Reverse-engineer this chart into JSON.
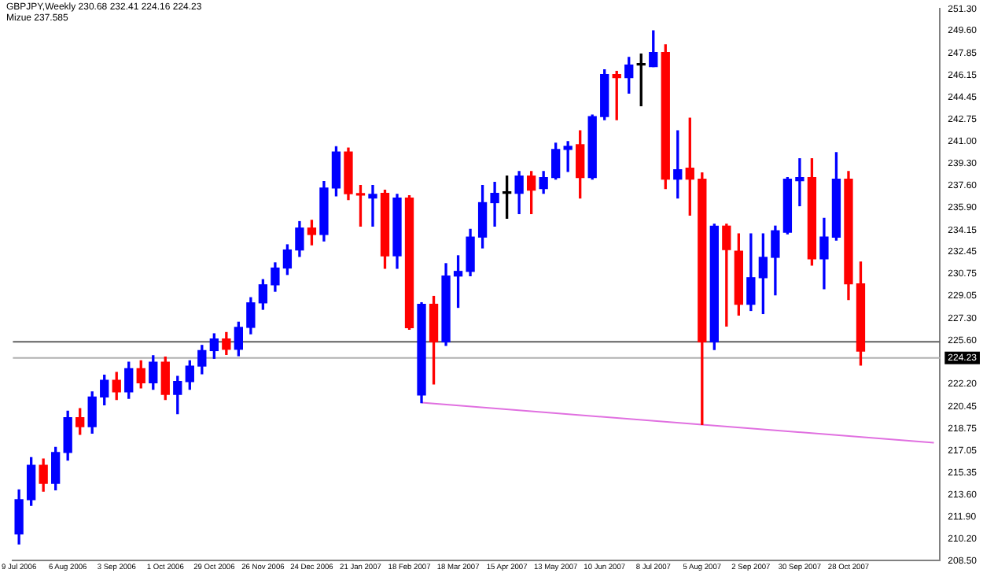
{
  "chart_data": {
    "type": "candlestick",
    "title": "GBPJPY,Weekly  230.68 232.41 224.16 224.23",
    "subtitle": "Mizue 237.585",
    "categories": [
      "9 Jul 2006",
      null,
      null,
      null,
      "6 Aug 2006",
      null,
      null,
      null,
      "3 Sep 2006",
      null,
      null,
      null,
      "1 Oct 2006",
      null,
      null,
      null,
      "29 Oct 2006",
      null,
      null,
      null,
      "26 Nov 2006",
      null,
      null,
      null,
      "24 Dec 2006",
      null,
      null,
      null,
      "21 Jan 2007",
      null,
      null,
      null,
      "18 Feb 2007",
      null,
      null,
      null,
      "18 Mar 2007",
      null,
      null,
      null,
      "15 Apr 2007",
      null,
      null,
      null,
      "13 May 2007",
      null,
      null,
      null,
      "10 Jun 2007",
      null,
      null,
      null,
      "8 Jul 2007",
      null,
      null,
      null,
      "5 Aug 2007",
      null,
      null,
      null,
      "2 Sep 2007",
      null,
      null,
      null,
      "30 Sep 2007",
      null,
      null,
      null,
      "28 Oct 2007",
      null,
      null,
      null,
      null,
      null,
      null,
      null
    ],
    "ohlc": [
      [
        210.58,
        214.0,
        209.8,
        213.24
      ],
      [
        213.24,
        216.5,
        212.8,
        215.9
      ],
      [
        215.9,
        216.4,
        213.9,
        214.5
      ],
      [
        214.5,
        217.3,
        214.0,
        216.9
      ],
      [
        216.9,
        220.1,
        216.3,
        219.6
      ],
      [
        219.6,
        220.3,
        218.3,
        218.9
      ],
      [
        218.9,
        221.6,
        218.4,
        221.2
      ],
      [
        221.2,
        222.9,
        220.6,
        222.5
      ],
      [
        222.5,
        223.1,
        221.0,
        221.6
      ],
      [
        221.6,
        223.9,
        221.1,
        223.4
      ],
      [
        223.4,
        224.0,
        221.9,
        222.3
      ],
      [
        222.3,
        224.4,
        221.8,
        223.9
      ],
      [
        223.9,
        224.3,
        221.0,
        221.4
      ],
      [
        221.4,
        222.8,
        219.9,
        222.4
      ],
      [
        222.4,
        224.0,
        221.8,
        223.6
      ],
      [
        223.6,
        225.2,
        223.0,
        224.8
      ],
      [
        224.8,
        226.1,
        224.2,
        225.7
      ],
      [
        225.7,
        226.2,
        224.5,
        224.9
      ],
      [
        224.9,
        227.0,
        224.4,
        226.6
      ],
      [
        226.6,
        228.9,
        226.1,
        228.5
      ],
      [
        228.5,
        230.3,
        228.0,
        229.9
      ],
      [
        229.9,
        231.6,
        229.4,
        231.2
      ],
      [
        231.2,
        233.0,
        230.7,
        232.6
      ],
      [
        232.6,
        234.8,
        232.1,
        234.3
      ],
      [
        234.3,
        234.9,
        233.0,
        233.8
      ],
      [
        233.8,
        237.9,
        233.3,
        237.4
      ],
      [
        237.4,
        240.6,
        236.8,
        240.2
      ],
      [
        240.2,
        240.5,
        236.5,
        236.97
      ],
      [
        236.97,
        237.6,
        234.45,
        236.85
      ],
      [
        236.63,
        237.6,
        234.45,
        236.91
      ],
      [
        236.99,
        237.24,
        231.18,
        232.15
      ],
      [
        232.15,
        236.91,
        231.18,
        236.63
      ],
      [
        236.63,
        236.8,
        226.45,
        226.57
      ],
      [
        221.36,
        228.51,
        220.76,
        228.39
      ],
      [
        228.39,
        229.0,
        222.21,
        225.48
      ],
      [
        225.48,
        231.54,
        225.2,
        230.58
      ],
      [
        230.58,
        232.15,
        228.15,
        230.94
      ],
      [
        230.94,
        234.2,
        230.6,
        233.6
      ],
      [
        233.6,
        237.6,
        232.76,
        236.27
      ],
      [
        236.27,
        237.85,
        234.45,
        236.99
      ],
      [
        236.99,
        238.33,
        235.06,
        236.99
      ],
      [
        236.99,
        238.69,
        235.42,
        238.33
      ],
      [
        238.33,
        238.69,
        235.42,
        237.24
      ],
      [
        237.36,
        238.69,
        236.99,
        238.21
      ],
      [
        238.21,
        240.88,
        238.09,
        240.39
      ],
      [
        240.39,
        241.0,
        238.69,
        240.63
      ],
      [
        240.76,
        241.85,
        236.63,
        238.21
      ],
      [
        238.21,
        243.06,
        238.09,
        242.94
      ],
      [
        242.94,
        246.57,
        242.7,
        246.21
      ],
      [
        246.21,
        246.45,
        242.7,
        245.97
      ],
      [
        245.97,
        247.54,
        244.76,
        246.94
      ],
      [
        246.94,
        247.79,
        243.79,
        246.94
      ],
      [
        246.82,
        249.6,
        246.82,
        247.91
      ],
      [
        247.91,
        248.51,
        237.36,
        238.09
      ],
      [
        238.09,
        241.85,
        236.63,
        238.82
      ],
      [
        238.94,
        242.82,
        235.3,
        238.09
      ],
      [
        238.09,
        238.57,
        219.06,
        225.48
      ],
      [
        225.48,
        234.6,
        224.88,
        234.45
      ],
      [
        234.45,
        234.6,
        226.7,
        232.63
      ],
      [
        232.51,
        233.85,
        227.55,
        228.39
      ],
      [
        228.39,
        233.85,
        227.91,
        230.45
      ],
      [
        230.45,
        233.85,
        227.67,
        232.03
      ],
      [
        232.03,
        234.45,
        229.12,
        234.09
      ],
      [
        233.97,
        238.21,
        233.85,
        238.09
      ],
      [
        237.97,
        239.67,
        236.03,
        238.21
      ],
      [
        238.21,
        239.67,
        231.42,
        231.91
      ],
      [
        231.91,
        235.06,
        229.6,
        233.6
      ],
      [
        233.6,
        240.15,
        233.36,
        238.09
      ],
      [
        238.09,
        238.69,
        228.76,
        229.97
      ],
      [
        229.97,
        231.67,
        223.67,
        224.76
      ],
      null,
      null,
      null,
      null,
      null,
      null
    ],
    "colors": [
      "#0000ff",
      "#0000ff",
      "#ff0000",
      "#0000ff",
      "#0000ff",
      "#ff0000",
      "#0000ff",
      "#0000ff",
      "#ff0000",
      "#0000ff",
      "#ff0000",
      "#0000ff",
      "#ff0000",
      "#0000ff",
      "#0000ff",
      "#0000ff",
      "#0000ff",
      "#ff0000",
      "#0000ff",
      "#0000ff",
      "#0000ff",
      "#0000ff",
      "#0000ff",
      "#0000ff",
      "#ff0000",
      "#0000ff",
      "#0000ff",
      "#ff0000",
      "#ff0000",
      "#0000ff",
      "#ff0000",
      "#0000ff",
      "#ff0000",
      "#0000ff",
      "#ff0000",
      "#0000ff",
      "#0000ff",
      "#0000ff",
      "#0000ff",
      "#0000ff",
      "#000000",
      "#0000ff",
      "#ff0000",
      "#0000ff",
      "#0000ff",
      "#0000ff",
      "#ff0000",
      "#0000ff",
      "#0000ff",
      "#ff0000",
      "#0000ff",
      "#000000",
      "#0000ff",
      "#ff0000",
      "#0000ff",
      "#ff0000",
      "#ff0000",
      "#0000ff",
      "#ff0000",
      "#ff0000",
      "#0000ff",
      "#0000ff",
      "#0000ff",
      "#0000ff",
      "#0000ff",
      "#ff0000",
      "#0000ff",
      "#0000ff",
      "#ff0000",
      "#ff0000",
      null,
      null,
      null,
      null,
      null,
      null
    ],
    "series": [
      {
        "type": "line",
        "color": "#e070e0",
        "values": [
          null,
          null,
          null,
          null,
          null,
          null,
          null,
          null,
          null,
          null,
          null,
          null,
          null,
          null,
          null,
          null,
          null,
          null,
          null,
          null,
          null,
          null,
          null,
          null,
          null,
          null,
          null,
          null,
          null,
          null,
          null,
          null,
          null,
          220.76,
          null,
          null,
          null,
          null,
          null,
          null,
          null,
          null,
          null,
          null,
          null,
          null,
          null,
          null,
          null,
          null,
          null,
          null,
          null,
          null,
          null,
          null,
          219.06,
          null,
          null,
          null,
          null,
          null,
          null,
          null,
          null,
          null,
          null,
          null,
          null,
          null,
          null,
          null,
          null,
          null,
          null,
          217.66
        ]
      }
    ],
    "ref_lines": [
      {
        "axis": "y",
        "value": 225.48,
        "color": "#606060"
      },
      {
        "axis": "y",
        "value": 224.23,
        "label": "224.23",
        "color": "#b0b0b0"
      }
    ],
    "ylim": [
      208.5,
      251.3
    ],
    "yticks": [
      {
        "value": 208.5,
        "label": "208.50"
      },
      {
        "value": 210.2,
        "label": "210.20"
      },
      {
        "value": 211.9,
        "label": "211.90"
      },
      {
        "value": 213.6,
        "label": "213.60"
      },
      {
        "value": 215.35,
        "label": "215.35"
      },
      {
        "value": 217.05,
        "label": "217.05"
      },
      {
        "value": 218.75,
        "label": "218.75"
      },
      {
        "value": 220.45,
        "label": "220.45"
      },
      {
        "value": 222.2,
        "label": "222.20"
      },
      {
        "value": 225.6,
        "label": "225.60"
      },
      {
        "value": 227.3,
        "label": "227.30"
      },
      {
        "value": 229.05,
        "label": "229.05"
      },
      {
        "value": 230.75,
        "label": "230.75"
      },
      {
        "value": 232.45,
        "label": "232.45"
      },
      {
        "value": 234.15,
        "label": "234.15"
      },
      {
        "value": 235.9,
        "label": "235.90"
      },
      {
        "value": 237.6,
        "label": "237.60"
      },
      {
        "value": 239.3,
        "label": "239.30"
      },
      {
        "value": 241,
        "label": "241.00"
      },
      {
        "value": 242.75,
        "label": "242.75"
      },
      {
        "value": 244.45,
        "label": "244.45"
      },
      {
        "value": 246.15,
        "label": "246.15"
      },
      {
        "value": 247.85,
        "label": "247.85"
      },
      {
        "value": 249.6,
        "label": "249.60"
      },
      {
        "value": 251.3,
        "label": "251.30"
      }
    ],
    "grid": false,
    "legend": false
  }
}
